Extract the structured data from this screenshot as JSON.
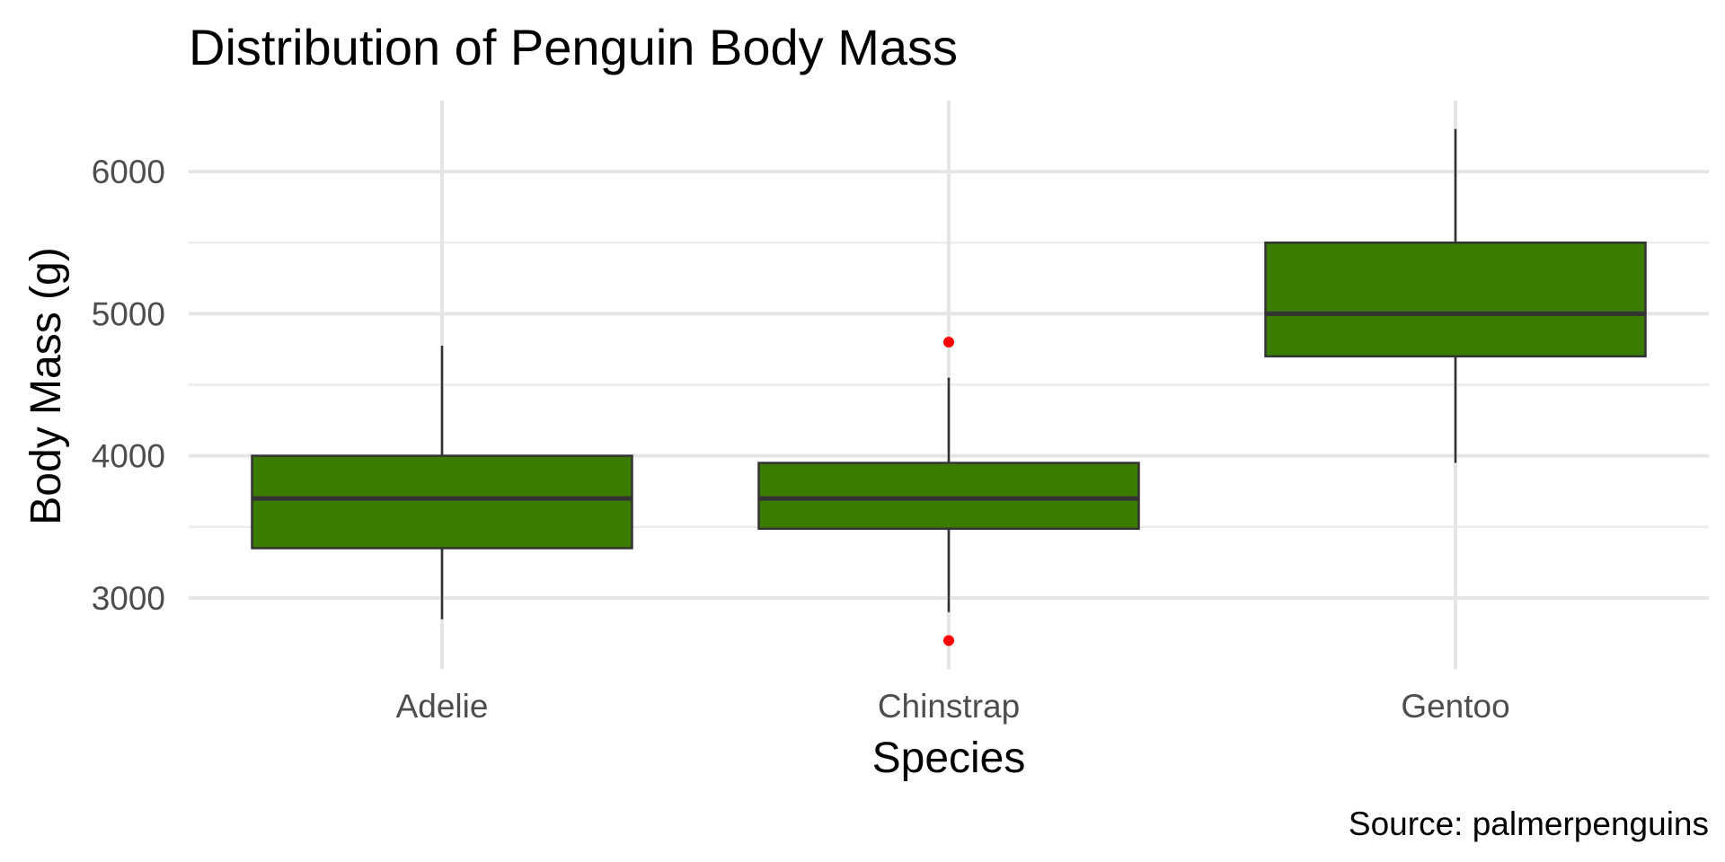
{
  "chart_data": {
    "type": "boxplot",
    "title": "Distribution of Penguin Body Mass",
    "xlabel": "Species",
    "ylabel": "Body Mass (g)",
    "caption": "Source: palmerpenguins",
    "ylim": [
      2500,
      6500
    ],
    "y_ticks": [
      3000,
      4000,
      5000,
      6000
    ],
    "y_minor_ticks": [
      3500,
      4500,
      5500
    ],
    "categories": [
      "Adelie",
      "Chinstrap",
      "Gentoo"
    ],
    "boxes": [
      {
        "category": "Adelie",
        "whisker_low": 2850,
        "q1": 3350,
        "median": 3700,
        "q3": 4000,
        "whisker_high": 4775,
        "outliers": []
      },
      {
        "category": "Chinstrap",
        "whisker_low": 2900,
        "q1": 3487,
        "median": 3700,
        "q3": 3950,
        "whisker_high": 4550,
        "outliers": [
          4800,
          2700
        ]
      },
      {
        "category": "Gentoo",
        "whisker_low": 3950,
        "q1": 4700,
        "median": 5000,
        "q3": 5500,
        "whisker_high": 6300,
        "outliers": []
      }
    ],
    "grid": true,
    "legend": "none",
    "colors": {
      "box_fill": "#3a7b02",
      "box_line": "#333333",
      "outlier": "#ff0000"
    }
  }
}
